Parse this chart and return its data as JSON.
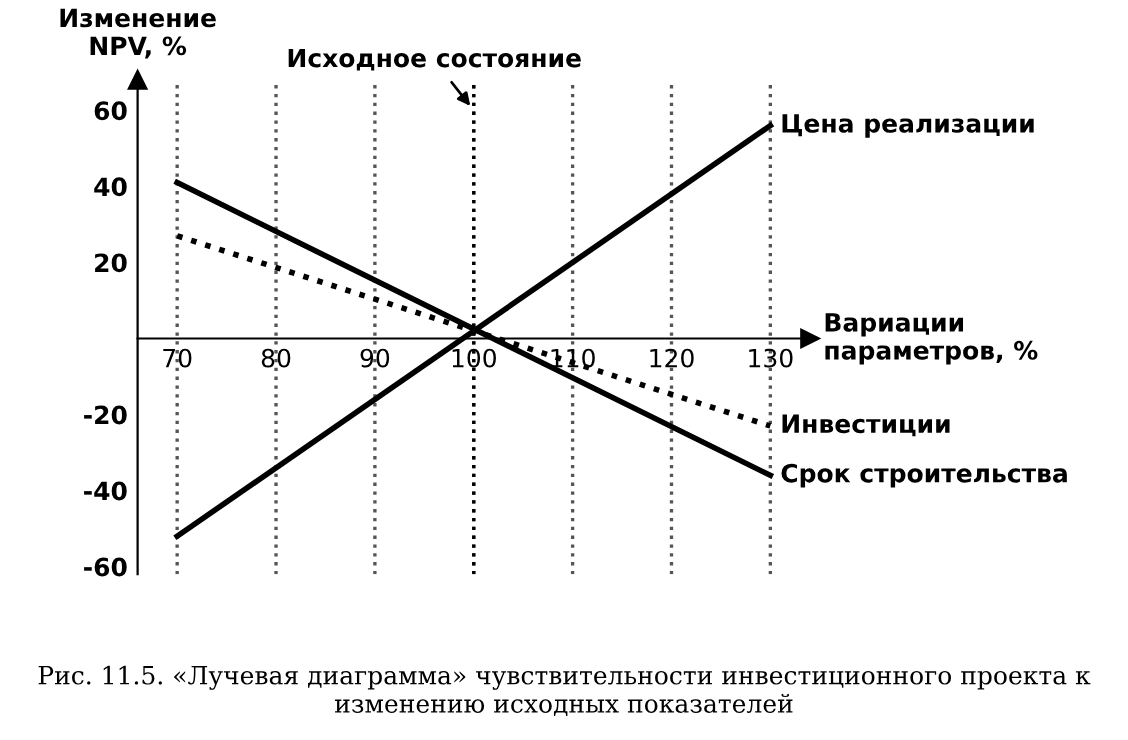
{
  "chart_data": {
    "type": "line",
    "ylabel": "Изменение\nNPV, %",
    "xlabel": "Вариации\nпараметров, %",
    "x": [
      70,
      130
    ],
    "xlim": [
      66,
      134
    ],
    "ylim": [
      -62,
      68
    ],
    "xticks": [
      70,
      80,
      90,
      100,
      110,
      120,
      130
    ],
    "yticks": [
      -60,
      -40,
      -20,
      20,
      40,
      60
    ],
    "series": [
      {
        "name": "Цена реализации",
        "color": "#000000",
        "values": [
          -52,
          56
        ],
        "line_style": "solid"
      },
      {
        "name": "Инвестиции",
        "color": "#000000",
        "values": [
          27,
          -23
        ],
        "line_style": "dotted"
      },
      {
        "name": "Срок строительства",
        "color": "#000000",
        "values": [
          41,
          -36
        ],
        "line_style": "solid"
      }
    ],
    "ref_lines": [
      {
        "axis": "x",
        "value": 100,
        "label": "Исходное состояние",
        "line_style": "dotted",
        "color": "#000000"
      }
    ],
    "grid": "x",
    "legend": false,
    "marker": "none",
    "annotations": [
      "Рис. 11.5. «Лучевая диаграмма» чувствительности инвестиционного проекта к изменению исходных показателей"
    ]
  }
}
